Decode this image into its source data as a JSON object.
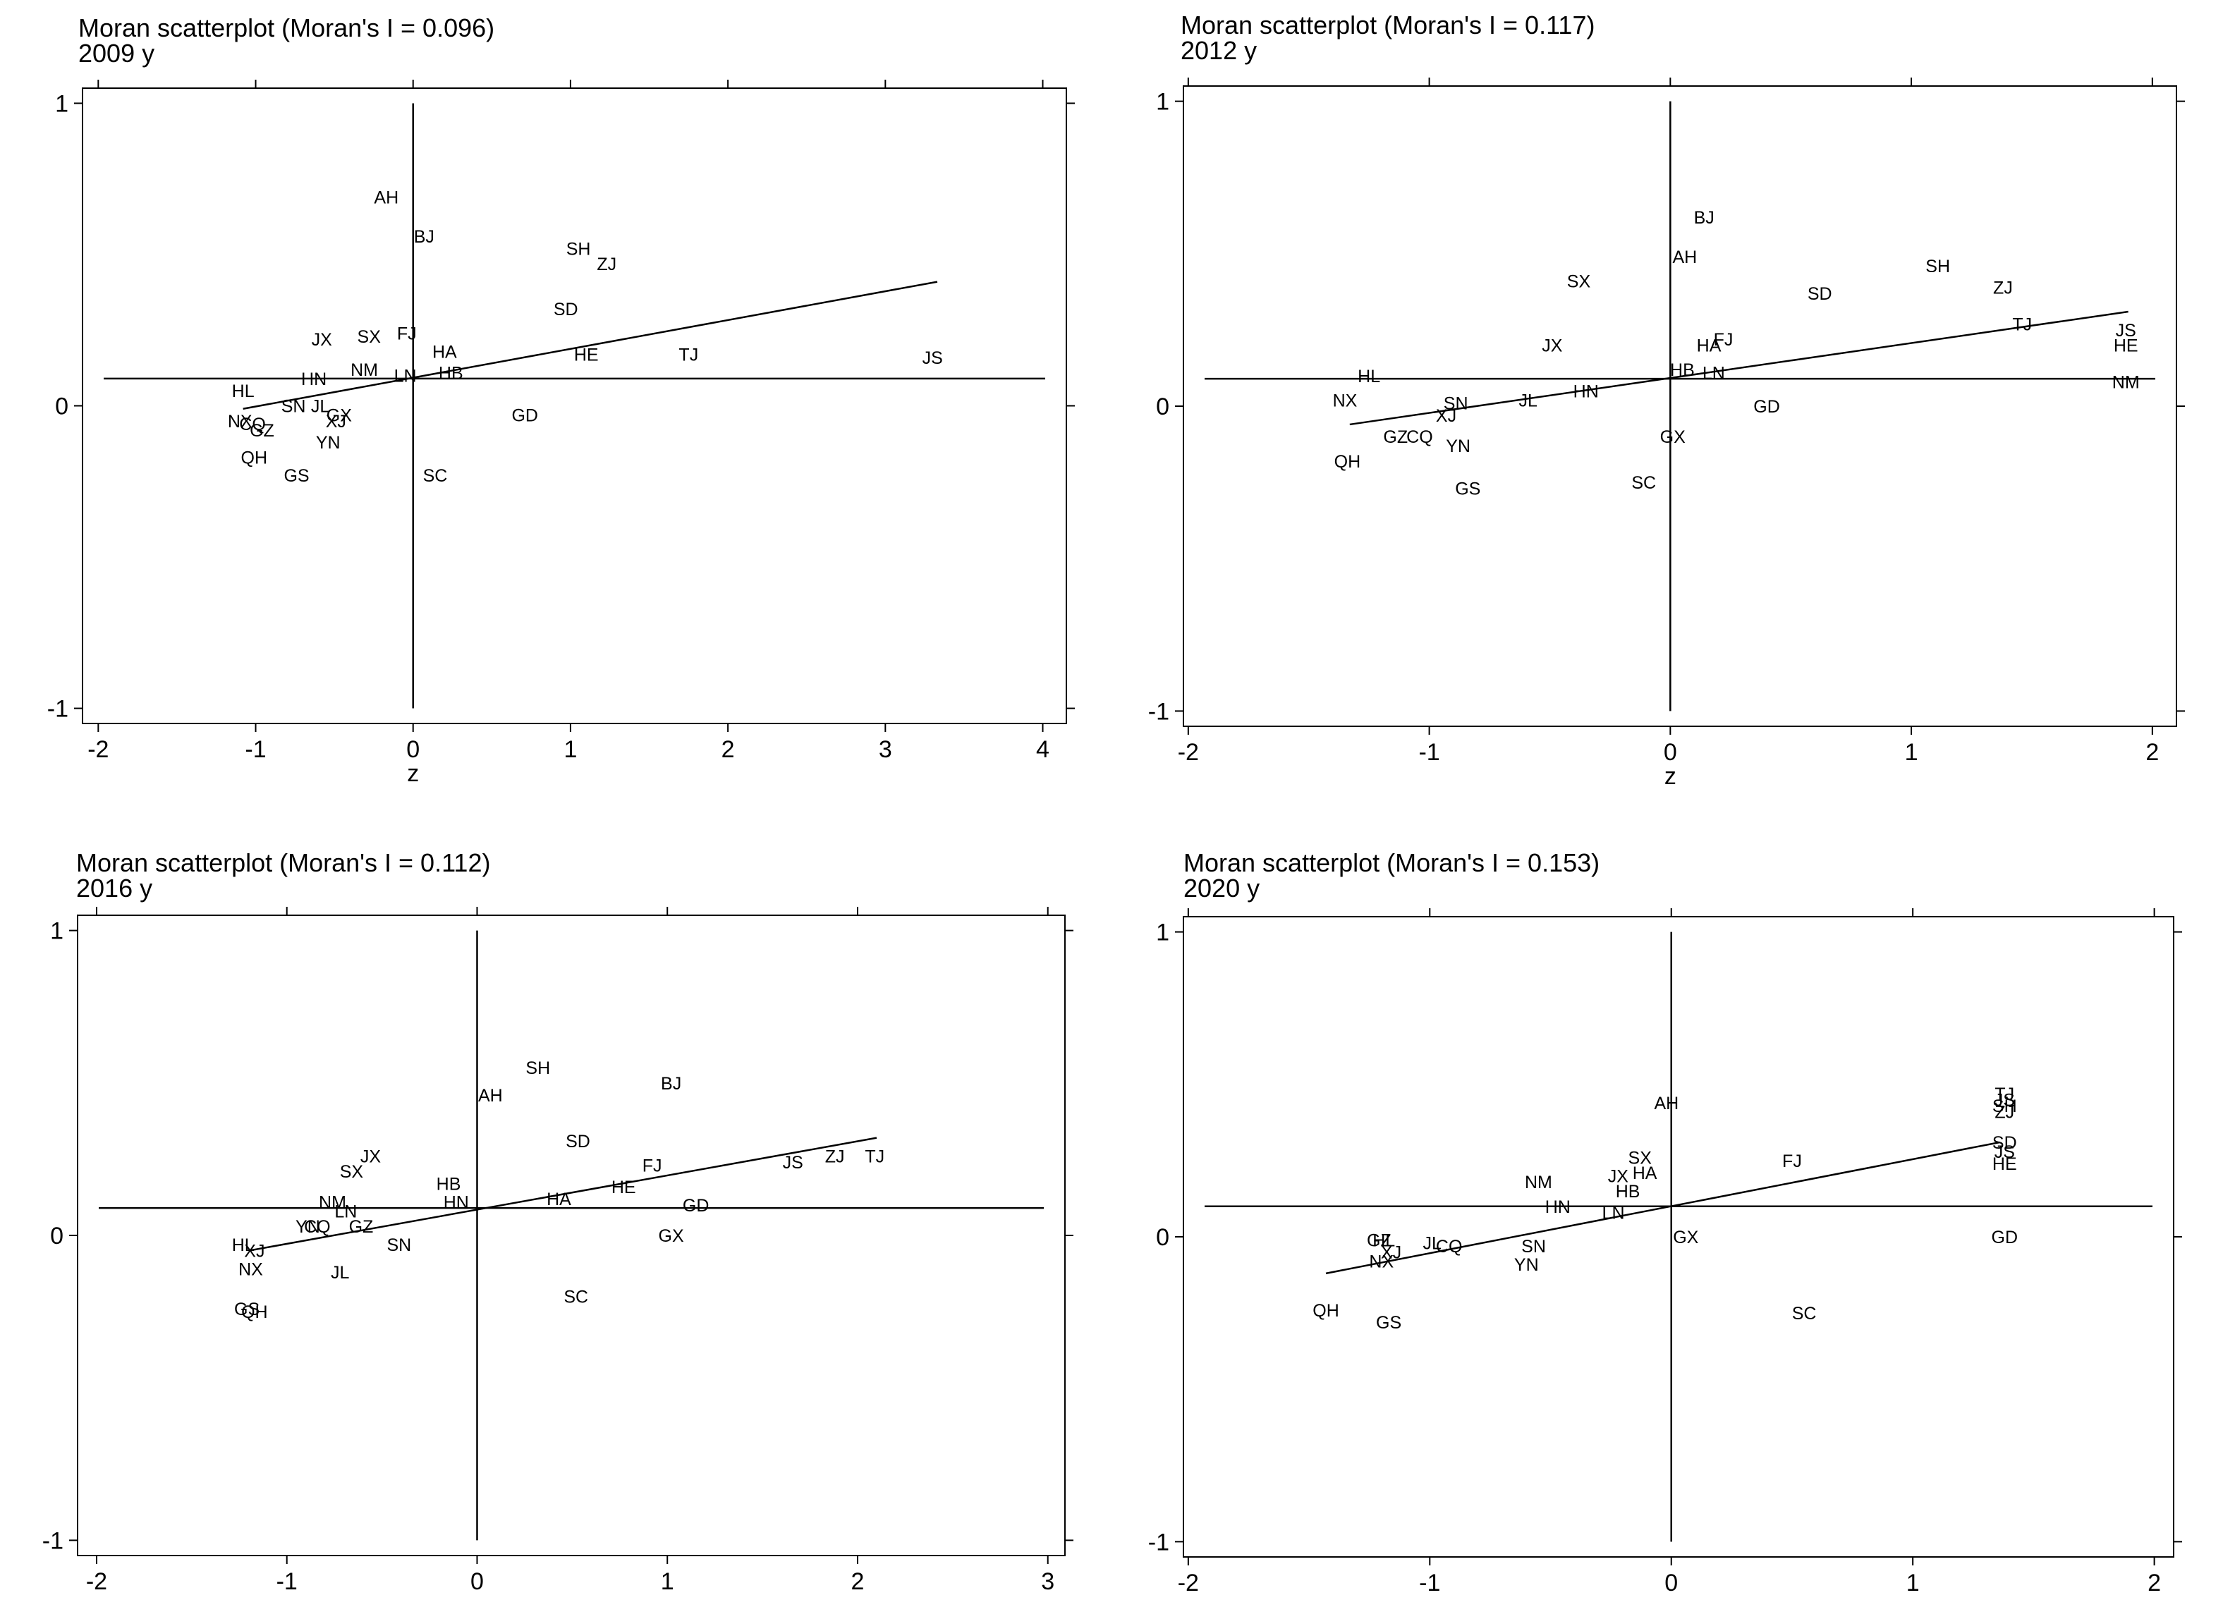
{
  "chart_data": [
    {
      "type": "scatter",
      "title": "Moran scatterplot (Moran's I = 0.096)",
      "subtitle": "2009 y",
      "xlabel": "z",
      "ylabel": "",
      "xlim": [
        -2.1,
        4.15
      ],
      "ylim": [
        -1.05,
        1.05
      ],
      "xticks": [
        -2,
        -1,
        0,
        1,
        2,
        3,
        4
      ],
      "yticks": [
        -1,
        0,
        1
      ],
      "xtick_labels": [
        "-2",
        "-1",
        "0",
        "1",
        "2",
        "3",
        "4"
      ],
      "ytick_labels": [
        "-1",
        "0",
        "1"
      ],
      "hline": 0.09,
      "vline": 0,
      "fit_line": [
        [
          -1.08,
          -0.01
        ],
        [
          3.33,
          0.41
        ]
      ],
      "points": [
        {
          "label": "AH",
          "x": -0.17,
          "y": 0.69
        },
        {
          "label": "BJ",
          "x": 0.07,
          "y": 0.56
        },
        {
          "label": "SH",
          "x": 1.05,
          "y": 0.52
        },
        {
          "label": "ZJ",
          "x": 1.23,
          "y": 0.47
        },
        {
          "label": "SD",
          "x": 0.97,
          "y": 0.32
        },
        {
          "label": "JX",
          "x": -0.58,
          "y": 0.22
        },
        {
          "label": "SX",
          "x": -0.28,
          "y": 0.23
        },
        {
          "label": "FJ",
          "x": -0.04,
          "y": 0.24
        },
        {
          "label": "HA",
          "x": 0.2,
          "y": 0.18
        },
        {
          "label": "HE",
          "x": 1.1,
          "y": 0.17
        },
        {
          "label": "TJ",
          "x": 1.75,
          "y": 0.17
        },
        {
          "label": "JS",
          "x": 3.3,
          "y": 0.16
        },
        {
          "label": "NM",
          "x": -0.31,
          "y": 0.12
        },
        {
          "label": "HN",
          "x": -0.63,
          "y": 0.09
        },
        {
          "label": "HB",
          "x": 0.24,
          "y": 0.11
        },
        {
          "label": "LN",
          "x": -0.05,
          "y": 0.1
        },
        {
          "label": "HL",
          "x": -1.08,
          "y": 0.05
        },
        {
          "label": "SN",
          "x": -0.76,
          "y": 0.0
        },
        {
          "label": "JL",
          "x": -0.59,
          "y": 0.0
        },
        {
          "label": "GX",
          "x": -0.47,
          "y": -0.03
        },
        {
          "label": "XJ",
          "x": -0.49,
          "y": -0.05
        },
        {
          "label": "GD",
          "x": 0.71,
          "y": -0.03
        },
        {
          "label": "NX",
          "x": -1.1,
          "y": -0.05
        },
        {
          "label": "CQ",
          "x": -1.02,
          "y": -0.06
        },
        {
          "label": "GZ",
          "x": -0.96,
          "y": -0.08
        },
        {
          "label": "YN",
          "x": -0.54,
          "y": -0.12
        },
        {
          "label": "QH",
          "x": -1.01,
          "y": -0.17
        },
        {
          "label": "GS",
          "x": -0.74,
          "y": -0.23
        },
        {
          "label": "SC",
          "x": 0.14,
          "y": -0.23
        }
      ]
    },
    {
      "type": "scatter",
      "title": "Moran scatterplot (Moran's I = 0.117)",
      "subtitle": "2012 y",
      "xlabel": "z",
      "ylabel": "",
      "xlim": [
        -2.02,
        2.1
      ],
      "ylim": [
        -1.05,
        1.05
      ],
      "xticks": [
        -2,
        -1,
        0,
        1,
        2
      ],
      "yticks": [
        -1,
        0,
        1
      ],
      "xtick_labels": [
        "-2",
        "-1",
        "0",
        "1",
        "2"
      ],
      "ytick_labels": [
        "-1",
        "0",
        "1"
      ],
      "hline": 0.09,
      "vline": 0,
      "fit_line": [
        [
          -1.33,
          -0.06
        ],
        [
          1.9,
          0.31
        ]
      ],
      "points": [
        {
          "label": "BJ",
          "x": 0.14,
          "y": 0.62
        },
        {
          "label": "AH",
          "x": 0.06,
          "y": 0.49
        },
        {
          "label": "SH",
          "x": 1.11,
          "y": 0.46
        },
        {
          "label": "ZJ",
          "x": 1.38,
          "y": 0.39
        },
        {
          "label": "SD",
          "x": 0.62,
          "y": 0.37
        },
        {
          "label": "SX",
          "x": -0.38,
          "y": 0.41
        },
        {
          "label": "TJ",
          "x": 1.46,
          "y": 0.27
        },
        {
          "label": "JS",
          "x": 1.89,
          "y": 0.25
        },
        {
          "label": "HE",
          "x": 1.89,
          "y": 0.2
        },
        {
          "label": "JX",
          "x": -0.49,
          "y": 0.2
        },
        {
          "label": "FJ",
          "x": 0.22,
          "y": 0.22
        },
        {
          "label": "HA",
          "x": 0.16,
          "y": 0.2
        },
        {
          "label": "HB",
          "x": 0.05,
          "y": 0.12
        },
        {
          "label": "LN",
          "x": 0.18,
          "y": 0.11
        },
        {
          "label": "NM",
          "x": 1.89,
          "y": 0.08
        },
        {
          "label": "HL",
          "x": -1.25,
          "y": 0.1
        },
        {
          "label": "HN",
          "x": -0.35,
          "y": 0.05
        },
        {
          "label": "NX",
          "x": -1.35,
          "y": 0.02
        },
        {
          "label": "JL",
          "x": -0.59,
          "y": 0.02
        },
        {
          "label": "SN",
          "x": -0.89,
          "y": 0.01
        },
        {
          "label": "XJ",
          "x": -0.93,
          "y": -0.03
        },
        {
          "label": "GD",
          "x": 0.4,
          "y": 0.0
        },
        {
          "label": "GZ",
          "x": -1.14,
          "y": -0.1
        },
        {
          "label": "CQ",
          "x": -1.04,
          "y": -0.1
        },
        {
          "label": "GX",
          "x": 0.01,
          "y": -0.1
        },
        {
          "label": "YN",
          "x": -0.88,
          "y": -0.13
        },
        {
          "label": "QH",
          "x": -1.34,
          "y": -0.18
        },
        {
          "label": "SC",
          "x": -0.11,
          "y": -0.25
        },
        {
          "label": "GS",
          "x": -0.84,
          "y": -0.27
        }
      ]
    },
    {
      "type": "scatter",
      "title": "Moran scatterplot (Moran's I = 0.112)",
      "subtitle": "2016 y",
      "xlabel": "",
      "ylabel": "",
      "xlim": [
        -2.1,
        3.09
      ],
      "ylim": [
        -1.05,
        1.05
      ],
      "xticks": [
        -2,
        -1,
        0,
        1,
        2,
        3
      ],
      "yticks": [
        -1,
        0,
        1
      ],
      "xtick_labels": [
        "-2",
        "-1",
        "0",
        "1",
        "2",
        "3"
      ],
      "ytick_labels": [
        "-1",
        "0",
        "1"
      ],
      "hline": 0.09,
      "vline": 0,
      "fit_line": [
        [
          -1.2,
          -0.05
        ],
        [
          2.1,
          0.32
        ]
      ],
      "points": [
        {
          "label": "SH",
          "x": 0.32,
          "y": 0.55
        },
        {
          "label": "BJ",
          "x": 1.02,
          "y": 0.5
        },
        {
          "label": "AH",
          "x": 0.07,
          "y": 0.46
        },
        {
          "label": "SD",
          "x": 0.53,
          "y": 0.31
        },
        {
          "label": "JX",
          "x": -0.56,
          "y": 0.26
        },
        {
          "label": "SX",
          "x": -0.66,
          "y": 0.21
        },
        {
          "label": "FJ",
          "x": 0.92,
          "y": 0.23
        },
        {
          "label": "JS",
          "x": 1.66,
          "y": 0.24
        },
        {
          "label": "ZJ",
          "x": 1.88,
          "y": 0.26
        },
        {
          "label": "TJ",
          "x": 2.09,
          "y": 0.26
        },
        {
          "label": "HB",
          "x": -0.15,
          "y": 0.17
        },
        {
          "label": "HE",
          "x": 0.77,
          "y": 0.16
        },
        {
          "label": "HA",
          "x": 0.43,
          "y": 0.12
        },
        {
          "label": "HN",
          "x": -0.11,
          "y": 0.11
        },
        {
          "label": "GD",
          "x": 1.15,
          "y": 0.1
        },
        {
          "label": "NM",
          "x": -0.76,
          "y": 0.11
        },
        {
          "label": "LN",
          "x": -0.69,
          "y": 0.08
        },
        {
          "label": "GZ",
          "x": -0.61,
          "y": 0.03
        },
        {
          "label": "YN",
          "x": -0.89,
          "y": 0.03
        },
        {
          "label": "CQ",
          "x": -0.84,
          "y": 0.03
        },
        {
          "label": "GX",
          "x": 1.02,
          "y": 0.0
        },
        {
          "label": "HL",
          "x": -1.23,
          "y": -0.03
        },
        {
          "label": "XJ",
          "x": -1.17,
          "y": -0.05
        },
        {
          "label": "SN",
          "x": -0.41,
          "y": -0.03
        },
        {
          "label": "NX",
          "x": -1.19,
          "y": -0.11
        },
        {
          "label": "JL",
          "x": -0.72,
          "y": -0.12
        },
        {
          "label": "SC",
          "x": 0.52,
          "y": -0.2
        },
        {
          "label": "GS",
          "x": -1.21,
          "y": -0.24
        },
        {
          "label": "QH",
          "x": -1.17,
          "y": -0.25
        }
      ]
    },
    {
      "type": "scatter",
      "title": "Moran scatterplot (Moran's I = 0.153)",
      "subtitle": "2020 y",
      "xlabel": "",
      "ylabel": "",
      "xlim": [
        -2.02,
        2.08
      ],
      "ylim": [
        -1.05,
        1.05
      ],
      "xticks": [
        -2,
        -1,
        0,
        1,
        2
      ],
      "yticks": [
        -1,
        0,
        1
      ],
      "xtick_labels": [
        "-2",
        "-1",
        "0",
        "1",
        "2"
      ],
      "ytick_labels": [
        "-1",
        "0",
        "1"
      ],
      "hline": 0.1,
      "vline": 0,
      "fit_line": [
        [
          -1.43,
          -0.12
        ],
        [
          1.36,
          0.31
        ]
      ],
      "points": [
        {
          "label": "TJ",
          "x": 1.38,
          "y": 0.47
        },
        {
          "label": "JS",
          "x": 1.38,
          "y": 0.45
        },
        {
          "label": "SH",
          "x": 1.38,
          "y": 0.43
        },
        {
          "label": "ZJ",
          "x": 1.38,
          "y": 0.41
        },
        {
          "label": "AH",
          "x": -0.02,
          "y": 0.44
        },
        {
          "label": "SD",
          "x": 1.38,
          "y": 0.31
        },
        {
          "label": "JS",
          "x": 1.38,
          "y": 0.28
        },
        {
          "label": "HE",
          "x": 1.38,
          "y": 0.24
        },
        {
          "label": "FJ",
          "x": 0.5,
          "y": 0.25
        },
        {
          "label": "SX",
          "x": -0.13,
          "y": 0.26
        },
        {
          "label": "JX",
          "x": -0.22,
          "y": 0.2
        },
        {
          "label": "HA",
          "x": -0.11,
          "y": 0.21
        },
        {
          "label": "NM",
          "x": -0.55,
          "y": 0.18
        },
        {
          "label": "HB",
          "x": -0.18,
          "y": 0.15
        },
        {
          "label": "HN",
          "x": -0.47,
          "y": 0.1
        },
        {
          "label": "LN",
          "x": -0.24,
          "y": 0.08
        },
        {
          "label": "GX",
          "x": 0.06,
          "y": 0.0
        },
        {
          "label": "GD",
          "x": 1.38,
          "y": 0.0
        },
        {
          "label": "GZ",
          "x": -1.21,
          "y": -0.01
        },
        {
          "label": "HL",
          "x": -1.19,
          "y": -0.01
        },
        {
          "label": "JL",
          "x": -0.99,
          "y": -0.02
        },
        {
          "label": "CQ",
          "x": -0.92,
          "y": -0.03
        },
        {
          "label": "SN",
          "x": -0.57,
          "y": -0.03
        },
        {
          "label": "XJ",
          "x": -1.16,
          "y": -0.05
        },
        {
          "label": "NX",
          "x": -1.2,
          "y": -0.08
        },
        {
          "label": "YN",
          "x": -0.6,
          "y": -0.09
        },
        {
          "label": "QH",
          "x": -1.43,
          "y": -0.24
        },
        {
          "label": "GS",
          "x": -1.17,
          "y": -0.28
        },
        {
          "label": "SC",
          "x": 0.55,
          "y": -0.25
        }
      ]
    }
  ]
}
